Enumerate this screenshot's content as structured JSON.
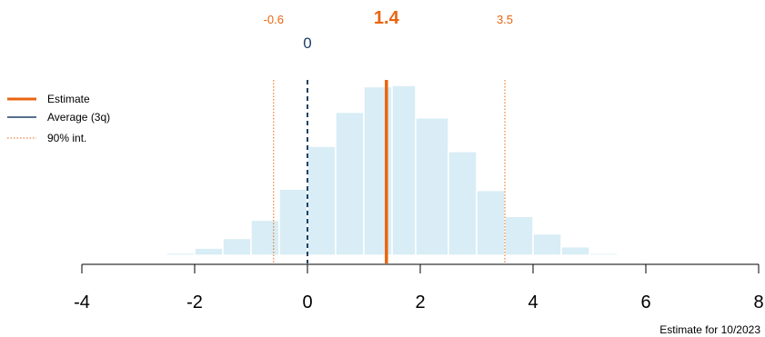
{
  "chart_data": {
    "type": "histogram",
    "bin_width": 0.5,
    "bins": [
      {
        "start": -3.0,
        "end": -2.5,
        "density": 0.003
      },
      {
        "start": -2.5,
        "end": -2.0,
        "density": 0.007
      },
      {
        "start": -2.0,
        "end": -1.5,
        "density": 0.022
      },
      {
        "start": -1.5,
        "end": -1.0,
        "density": 0.052
      },
      {
        "start": -1.0,
        "end": -0.5,
        "density": 0.108
      },
      {
        "start": -0.5,
        "end": 0.0,
        "density": 0.204
      },
      {
        "start": 0.0,
        "end": 0.5,
        "density": 0.336
      },
      {
        "start": 0.5,
        "end": 1.0,
        "density": 0.441
      },
      {
        "start": 1.0,
        "end": 1.5,
        "density": 0.52
      },
      {
        "start": 1.5,
        "end": 1.92,
        "density": 0.524
      },
      {
        "start": 1.92,
        "end": 2.5,
        "density": 0.424
      },
      {
        "start": 2.5,
        "end": 3.0,
        "density": 0.32
      },
      {
        "start": 3.0,
        "end": 3.5,
        "density": 0.2
      },
      {
        "start": 3.5,
        "end": 4.0,
        "density": 0.12
      },
      {
        "start": 4.0,
        "end": 4.5,
        "density": 0.066
      },
      {
        "start": 4.5,
        "end": 5.0,
        "density": 0.026
      },
      {
        "start": 5.0,
        "end": 5.5,
        "density": 0.006
      }
    ],
    "estimate": 1.4,
    "average_3q": 0,
    "interval_90": [
      -0.6,
      3.5
    ],
    "xlim": [
      -4,
      8
    ],
    "x_ticks": [
      -4,
      -2,
      0,
      2,
      4,
      6,
      8
    ],
    "x_tick_labels": [
      "-4",
      "-2",
      "0",
      "2",
      "4",
      "6",
      "8"
    ],
    "top_labels": {
      "estimate": "1.4",
      "average": "0",
      "lower": "-0.6",
      "upper": "3.5"
    },
    "legend": {
      "position": "left",
      "entries": [
        {
          "label": "Estimate",
          "style": "solid-thick",
          "color": "#E8650F"
        },
        {
          "label": "Average (3q)",
          "style": "solid",
          "color": "#1F3F66"
        },
        {
          "label": "90% int.",
          "style": "dotted",
          "color": "#E8650F"
        }
      ]
    },
    "xlabel": "Estimate for 10/2023",
    "colors": {
      "bar_fill": "#D8EDF5",
      "bar_stroke": "#FFFFFF",
      "estimate": "#E8650F",
      "average": "#1F3F66",
      "interval": "#E8650F",
      "axis": "#000000"
    }
  }
}
